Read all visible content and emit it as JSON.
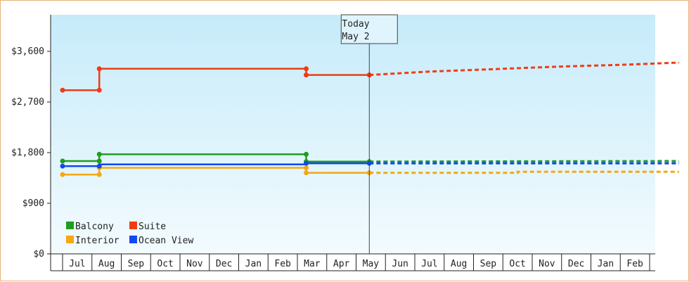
{
  "chart_data": {
    "type": "line",
    "y_ticks": [
      "$0",
      "$900",
      "$1,800",
      "$2,700",
      "$3,600"
    ],
    "y_tick_values": [
      0,
      900,
      1800,
      2700,
      3600
    ],
    "ylim": [
      0,
      4250
    ],
    "x_months": [
      "Jul",
      "Aug",
      "Sep",
      "Oct",
      "Nov",
      "Dec",
      "Jan",
      "Feb",
      "Mar",
      "Apr",
      "May",
      "Jun",
      "Jul",
      "Aug",
      "Sep",
      "Oct",
      "Nov",
      "Dec",
      "Jan",
      "Feb"
    ],
    "today": {
      "line1": "Today",
      "line2": "May 2"
    },
    "grid": false,
    "legend_position": "bottom-left",
    "colors": {
      "plot_top": "#c6ebfa",
      "plot_bottom": "#f3fbfe",
      "frame_border": "#e8b47a"
    },
    "series": [
      {
        "name": "Balcony",
        "color": "#1e9e1e",
        "history": [
          [
            0,
            1650
          ],
          [
            1.25,
            1650
          ],
          [
            1.25,
            1770
          ],
          [
            8.3,
            1770
          ],
          [
            8.3,
            1640
          ],
          [
            10.45,
            1640
          ]
        ],
        "markers": [
          [
            0,
            1650
          ],
          [
            1.25,
            1650
          ],
          [
            1.25,
            1770
          ],
          [
            8.3,
            1770
          ],
          [
            8.3,
            1640
          ],
          [
            10.45,
            1640
          ]
        ],
        "forecast": [
          [
            10.45,
            1640
          ],
          [
            21,
            1650
          ]
        ]
      },
      {
        "name": "Suite",
        "color": "#f03c14",
        "history": [
          [
            0,
            2910
          ],
          [
            1.25,
            2910
          ],
          [
            1.25,
            3290
          ],
          [
            8.3,
            3290
          ],
          [
            8.3,
            3180
          ],
          [
            10.45,
            3180
          ]
        ],
        "markers": [
          [
            0,
            2910
          ],
          [
            1.25,
            2910
          ],
          [
            1.25,
            3290
          ],
          [
            8.3,
            3290
          ],
          [
            8.3,
            3180
          ],
          [
            10.45,
            3180
          ]
        ],
        "forecast": [
          [
            10.45,
            3180
          ],
          [
            12.5,
            3240
          ],
          [
            15,
            3290
          ],
          [
            17,
            3330
          ],
          [
            19,
            3360
          ],
          [
            21,
            3400
          ]
        ]
      },
      {
        "name": "Interior",
        "color": "#f5a814",
        "history": [
          [
            0,
            1410
          ],
          [
            1.25,
            1410
          ],
          [
            1.25,
            1530
          ],
          [
            8.3,
            1530
          ],
          [
            8.3,
            1440
          ],
          [
            10.45,
            1440
          ]
        ],
        "markers": [
          [
            0,
            1410
          ],
          [
            1.25,
            1410
          ],
          [
            1.25,
            1530
          ],
          [
            8.3,
            1530
          ],
          [
            8.3,
            1440
          ],
          [
            10.45,
            1440
          ]
        ],
        "forecast": [
          [
            10.45,
            1440
          ],
          [
            15.5,
            1440
          ],
          [
            15.5,
            1460
          ],
          [
            21,
            1460
          ]
        ]
      },
      {
        "name": "Ocean View",
        "color": "#1448f0",
        "history": [
          [
            0,
            1560
          ],
          [
            1.25,
            1560
          ],
          [
            1.25,
            1590
          ],
          [
            8.3,
            1590
          ],
          [
            8.3,
            1610
          ],
          [
            10.45,
            1610
          ]
        ],
        "markers": [
          [
            0,
            1560
          ],
          [
            1.25,
            1560
          ],
          [
            8.3,
            1610
          ],
          [
            10.45,
            1610
          ]
        ],
        "forecast": [
          [
            10.45,
            1610
          ],
          [
            21,
            1610
          ]
        ]
      }
    ],
    "today_x": 10.45,
    "legend_order": [
      [
        "Balcony",
        "Suite"
      ],
      [
        "Interior",
        "Ocean View"
      ]
    ]
  }
}
